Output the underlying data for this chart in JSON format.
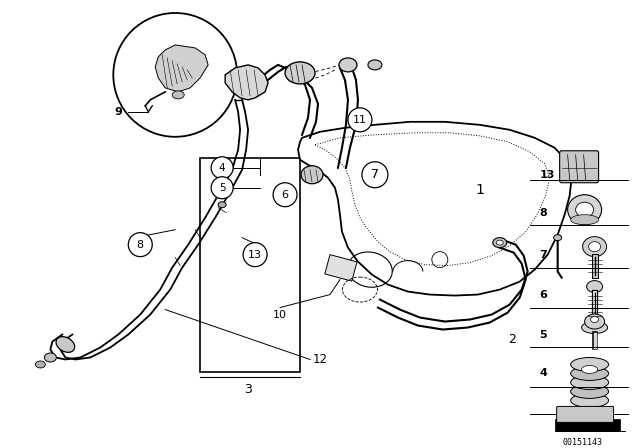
{
  "bg_color": "#ffffff",
  "line_color": "#000000",
  "diagram_id": "00151143",
  "fig_width": 6.4,
  "fig_height": 4.48,
  "dpi": 100
}
